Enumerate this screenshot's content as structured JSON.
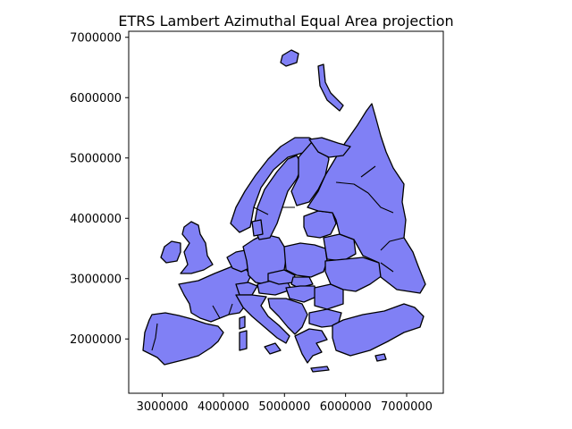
{
  "title": "ETRS Lambert Azimuthal Equal Area projection",
  "colors": {
    "land": "#8080f5",
    "outline": "#000000",
    "background": "#ffffff"
  },
  "chart_data": {
    "type": "map",
    "title": "ETRS Lambert Azimuthal Equal Area projection",
    "xlim": [
      2450000,
      7600000
    ],
    "ylim": [
      1100000,
      7100000
    ],
    "xticks": [
      3000000,
      4000000,
      5000000,
      6000000,
      7000000
    ],
    "yticks": [
      2000000,
      3000000,
      4000000,
      5000000,
      6000000,
      7000000
    ],
    "xtick_labels": [
      "3000000",
      "4000000",
      "5000000",
      "6000000",
      "7000000"
    ],
    "ytick_labels": [
      "2000000",
      "3000000",
      "4000000",
      "5000000",
      "6000000",
      "7000000"
    ],
    "grid": false
  }
}
